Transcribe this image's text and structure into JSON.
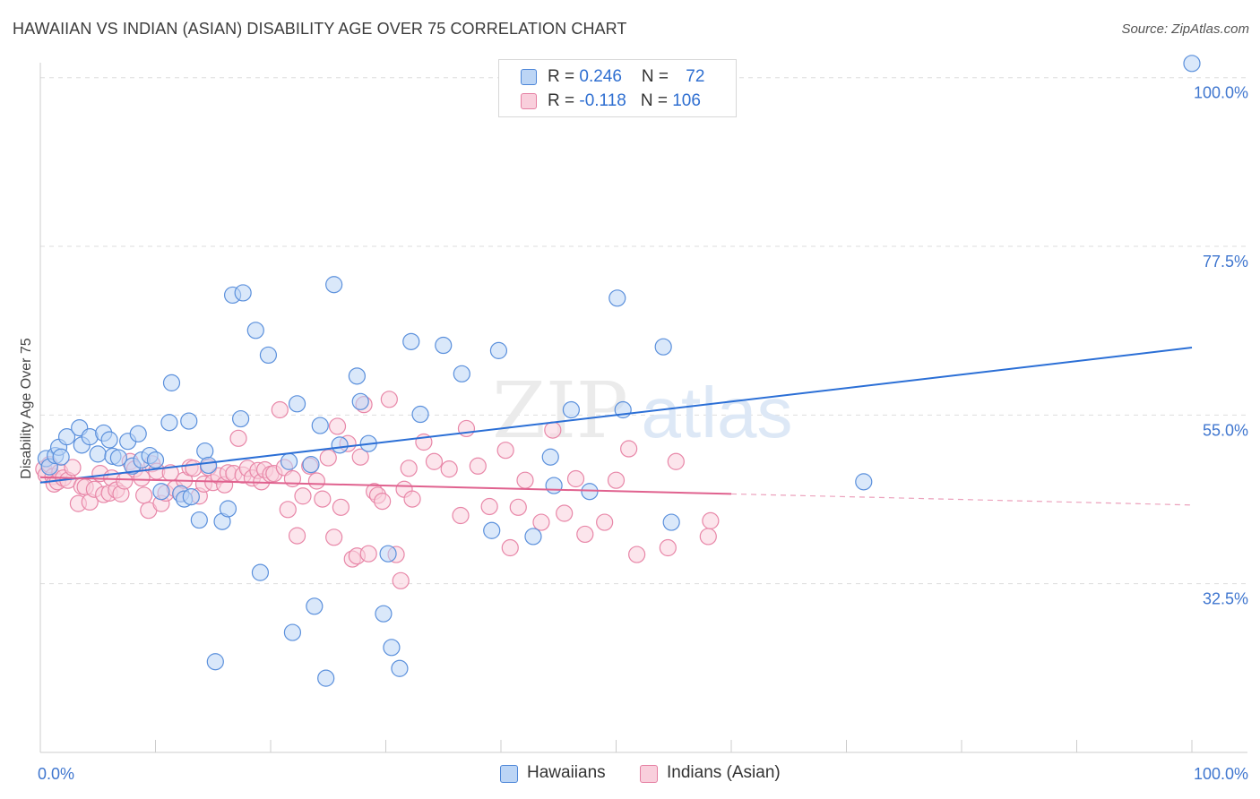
{
  "title": "HAWAIIAN VS INDIAN (ASIAN) DISABILITY AGE OVER 75 CORRELATION CHART",
  "source": "Source: ZipAtlas.com",
  "watermark": {
    "zip": "ZIP",
    "atlas": "atlas"
  },
  "legend_top": {
    "row1": {
      "r_label": "R = ",
      "r_value": "0.246",
      "n_label": "N = ",
      "n_value": "72"
    },
    "row2": {
      "r_label": "R = ",
      "r_value": "-0.118",
      "n_label": "N = ",
      "n_value": "106"
    }
  },
  "legend_bottom": {
    "series1": "Hawaiians",
    "series2": "Indians (Asian)"
  },
  "colors": {
    "blue_fill": "#bcd5f5",
    "blue_stroke": "#5b90dc",
    "blue_line": "#2b6fd6",
    "pink_fill": "#f9cfdc",
    "pink_stroke": "#e887a8",
    "pink_line": "#e0628f",
    "axis_label": "#3f76cf",
    "grid": "#dddddd"
  },
  "chart_data": {
    "type": "scatter",
    "title": "HAWAIIAN VS INDIAN (ASIAN) DISABILITY AGE OVER 75 CORRELATION CHART",
    "xlabel": "",
    "ylabel": "Disability Age Over 75",
    "xlim": [
      0,
      100
    ],
    "ylim": [
      10,
      102
    ],
    "x_tick_labels": [
      "0.0%",
      "100.0%"
    ],
    "y_ticks": [
      32.5,
      55.0,
      77.5,
      100.0
    ],
    "y_tick_labels": [
      "32.5%",
      "55.0%",
      "77.5%",
      "100.0%"
    ],
    "series": [
      {
        "name": "Hawaiians",
        "R": 0.246,
        "N": 72,
        "trend": {
          "x": [
            0,
            100
          ],
          "y": [
            46.0,
            64.0
          ],
          "dashed_from": null
        },
        "points": [
          [
            0.5,
            49.2
          ],
          [
            0.8,
            48.1
          ],
          [
            1.3,
            49.6
          ],
          [
            1.6,
            50.7
          ],
          [
            1.8,
            49.4
          ],
          [
            2.3,
            52.1
          ],
          [
            3.4,
            53.3
          ],
          [
            3.6,
            51.0
          ],
          [
            4.3,
            52.1
          ],
          [
            5.0,
            49.8
          ],
          [
            5.5,
            52.6
          ],
          [
            6.0,
            51.7
          ],
          [
            6.3,
            49.5
          ],
          [
            6.8,
            49.3
          ],
          [
            7.6,
            51.5
          ],
          [
            8.0,
            48.2
          ],
          [
            8.5,
            52.5
          ],
          [
            8.8,
            49.0
          ],
          [
            9.5,
            49.6
          ],
          [
            10.0,
            49.0
          ],
          [
            10.5,
            44.8
          ],
          [
            11.2,
            54.0
          ],
          [
            11.4,
            59.3
          ],
          [
            12.2,
            44.5
          ],
          [
            12.5,
            43.8
          ],
          [
            12.9,
            54.2
          ],
          [
            13.1,
            44.1
          ],
          [
            13.8,
            41.0
          ],
          [
            14.3,
            50.2
          ],
          [
            14.6,
            48.3
          ],
          [
            15.2,
            22.1
          ],
          [
            15.8,
            40.8
          ],
          [
            16.3,
            42.5
          ],
          [
            16.7,
            71.0
          ],
          [
            17.4,
            54.5
          ],
          [
            17.6,
            71.3
          ],
          [
            18.7,
            66.3
          ],
          [
            19.1,
            34.0
          ],
          [
            19.8,
            63.0
          ],
          [
            21.6,
            48.8
          ],
          [
            21.9,
            26.0
          ],
          [
            22.3,
            56.5
          ],
          [
            23.5,
            48.4
          ],
          [
            23.8,
            29.5
          ],
          [
            24.3,
            53.6
          ],
          [
            24.8,
            19.9
          ],
          [
            25.5,
            72.4
          ],
          [
            26.0,
            51.0
          ],
          [
            27.5,
            60.2
          ],
          [
            27.8,
            56.8
          ],
          [
            28.5,
            51.2
          ],
          [
            29.8,
            28.5
          ],
          [
            30.2,
            36.5
          ],
          [
            30.5,
            24.0
          ],
          [
            31.2,
            21.2
          ],
          [
            32.2,
            64.8
          ],
          [
            33.0,
            55.1
          ],
          [
            35.0,
            64.3
          ],
          [
            36.6,
            60.5
          ],
          [
            39.2,
            39.6
          ],
          [
            39.8,
            63.6
          ],
          [
            42.8,
            38.8
          ],
          [
            44.3,
            49.4
          ],
          [
            44.6,
            45.6
          ],
          [
            46.1,
            55.7
          ],
          [
            47.7,
            44.8
          ],
          [
            50.1,
            70.6
          ],
          [
            50.6,
            55.7
          ],
          [
            54.1,
            64.1
          ],
          [
            54.8,
            40.7
          ],
          [
            71.5,
            46.1
          ],
          [
            100.0,
            101.9
          ]
        ]
      },
      {
        "name": "Indians (Asian)",
        "R": -0.118,
        "N": 106,
        "trend": {
          "x": [
            0,
            100
          ],
          "y": [
            46.7,
            43.0
          ],
          "dashed_from": 60
        },
        "points": [
          [
            0.3,
            47.8
          ],
          [
            0.5,
            47.0
          ],
          [
            0.8,
            48.4
          ],
          [
            1.1,
            46.8
          ],
          [
            1.2,
            45.8
          ],
          [
            1.5,
            46.1
          ],
          [
            1.7,
            47.4
          ],
          [
            2.0,
            46.6
          ],
          [
            2.4,
            46.3
          ],
          [
            2.8,
            48.0
          ],
          [
            3.3,
            43.2
          ],
          [
            3.6,
            45.5
          ],
          [
            3.9,
            45.4
          ],
          [
            4.3,
            43.4
          ],
          [
            4.7,
            45.1
          ],
          [
            5.2,
            47.2
          ],
          [
            5.5,
            44.4
          ],
          [
            6.0,
            44.6
          ],
          [
            6.2,
            46.6
          ],
          [
            6.6,
            45.0
          ],
          [
            7.0,
            44.5
          ],
          [
            7.3,
            46.2
          ],
          [
            7.8,
            48.8
          ],
          [
            8.2,
            47.8
          ],
          [
            8.8,
            46.6
          ],
          [
            9.0,
            44.3
          ],
          [
            9.4,
            42.3
          ],
          [
            9.7,
            48.5
          ],
          [
            10.1,
            47.5
          ],
          [
            10.5,
            43.2
          ],
          [
            10.9,
            44.6
          ],
          [
            11.3,
            47.3
          ],
          [
            11.7,
            45.2
          ],
          [
            12.2,
            44.5
          ],
          [
            12.5,
            46.3
          ],
          [
            13.0,
            48.0
          ],
          [
            13.3,
            47.9
          ],
          [
            13.8,
            44.2
          ],
          [
            14.2,
            45.8
          ],
          [
            14.6,
            48.0
          ],
          [
            15.0,
            46.0
          ],
          [
            15.5,
            46.9
          ],
          [
            16.0,
            45.7
          ],
          [
            16.3,
            47.3
          ],
          [
            16.8,
            47.2
          ],
          [
            17.2,
            51.9
          ],
          [
            17.6,
            47.0
          ],
          [
            18.0,
            47.9
          ],
          [
            18.4,
            46.6
          ],
          [
            18.9,
            47.6
          ],
          [
            19.2,
            46.1
          ],
          [
            19.5,
            47.7
          ],
          [
            20.0,
            47.1
          ],
          [
            20.3,
            47.2
          ],
          [
            20.8,
            55.7
          ],
          [
            21.2,
            48.0
          ],
          [
            21.5,
            42.4
          ],
          [
            21.9,
            46.5
          ],
          [
            22.3,
            38.9
          ],
          [
            22.8,
            44.2
          ],
          [
            23.4,
            48.2
          ],
          [
            24.0,
            46.2
          ],
          [
            24.5,
            43.8
          ],
          [
            25.0,
            49.3
          ],
          [
            25.5,
            38.7
          ],
          [
            25.8,
            53.5
          ],
          [
            26.1,
            42.7
          ],
          [
            26.7,
            51.2
          ],
          [
            27.1,
            35.8
          ],
          [
            27.5,
            36.2
          ],
          [
            27.8,
            49.4
          ],
          [
            28.1,
            56.4
          ],
          [
            28.5,
            36.5
          ],
          [
            29.0,
            44.8
          ],
          [
            29.3,
            44.3
          ],
          [
            29.7,
            43.5
          ],
          [
            30.3,
            57.1
          ],
          [
            30.9,
            36.4
          ],
          [
            31.3,
            32.9
          ],
          [
            31.6,
            45.1
          ],
          [
            32.0,
            47.9
          ],
          [
            32.3,
            43.8
          ],
          [
            33.3,
            51.4
          ],
          [
            34.2,
            48.8
          ],
          [
            35.5,
            47.8
          ],
          [
            36.5,
            41.6
          ],
          [
            37.0,
            53.2
          ],
          [
            38.0,
            48.2
          ],
          [
            39.0,
            42.8
          ],
          [
            40.4,
            50.3
          ],
          [
            40.8,
            37.3
          ],
          [
            41.5,
            42.7
          ],
          [
            42.1,
            46.3
          ],
          [
            43.5,
            40.7
          ],
          [
            44.5,
            53.0
          ],
          [
            45.5,
            41.9
          ],
          [
            46.5,
            46.5
          ],
          [
            47.3,
            39.1
          ],
          [
            49.0,
            40.7
          ],
          [
            50.0,
            46.3
          ],
          [
            51.1,
            50.5
          ],
          [
            51.8,
            36.4
          ],
          [
            54.5,
            37.3
          ],
          [
            55.2,
            48.8
          ],
          [
            58.0,
            38.8
          ],
          [
            58.2,
            40.9
          ]
        ]
      }
    ]
  }
}
